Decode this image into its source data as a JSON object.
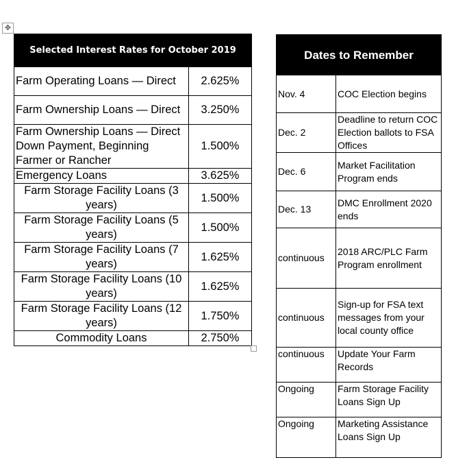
{
  "rates_table": {
    "title": "Selected Interest Rates for October 2019",
    "rows": [
      {
        "name": "Farm Operating Loans — Direct",
        "rate": "2.625%"
      },
      {
        "name": "Farm Ownership Loans — Direct",
        "rate": "3.250%"
      },
      {
        "name": "Farm Ownership Loans — Direct Down Payment, Beginning Farmer or Rancher",
        "rate": "1.500%"
      },
      {
        "name": "Emergency Loans",
        "rate": "3.625%"
      },
      {
        "name": "Farm Storage Facility Loans (3 years)",
        "rate": "1.500%"
      },
      {
        "name": "Farm Storage Facility Loans (5 years)",
        "rate": "1.500%"
      },
      {
        "name": "Farm Storage Facility Loans (7 years)",
        "rate": "1.625%"
      },
      {
        "name": "Farm Storage Facility Loans (10 years)",
        "rate": "1.625%"
      },
      {
        "name": "Farm Storage Facility Loans (12 years)",
        "rate": "1.750%"
      },
      {
        "name": "Commodity Loans",
        "rate": "2.750%"
      }
    ]
  },
  "dates_table": {
    "title": "Dates to Remember",
    "rows": [
      {
        "date": "Nov. 4",
        "event": "COC Election begins"
      },
      {
        "date": "Dec. 2",
        "event": "Deadline to return COC Election ballots to FSA Offices"
      },
      {
        "date": "Dec. 6",
        "event": "Market Facilitation Program ends"
      },
      {
        "date": "Dec. 13",
        "event": "DMC Enrollment 2020 ends"
      },
      {
        "date": "continuous",
        "event": "2018 ARC/PLC Farm Program enrollment"
      },
      {
        "date": "continuous",
        "event": "Sign-up for FSA text messages from your local county office"
      },
      {
        "date": "continuous",
        "event": "Update Your Farm Records"
      },
      {
        "date": "Ongoing",
        "event": "Farm Storage Facility Loans Sign Up"
      },
      {
        "date": "Ongoing",
        "event": "Marketing Assistance Loans Sign Up"
      }
    ]
  },
  "icons": {
    "move_handle": "move-icon"
  }
}
